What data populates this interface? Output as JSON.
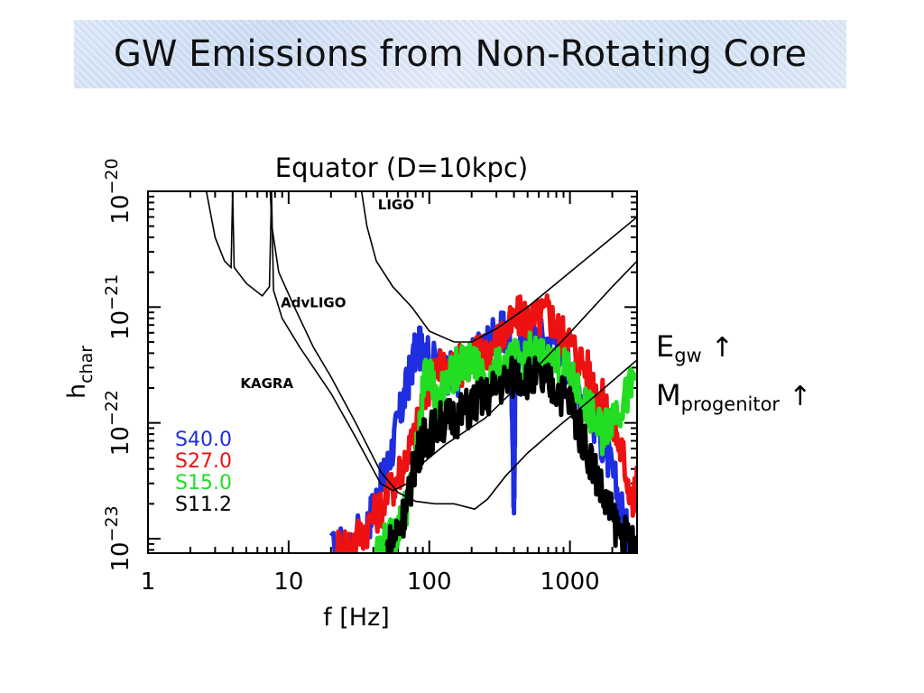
{
  "slide": {
    "title": "GW Emissions from Non-Rotating Core"
  },
  "notes": [
    {
      "main": "E",
      "sub": "gw",
      "arrow": "↑"
    },
    {
      "main": "M",
      "sub": "progenitor",
      "arrow": "↑"
    }
  ],
  "chart_data": {
    "type": "line",
    "title": "Equator (D=10kpc)",
    "xlabel": "f [Hz]",
    "ylabel_main": "h",
    "ylabel_sub": "char",
    "xscale": "log",
    "yscale": "log",
    "xlim": [
      1,
      3000
    ],
    "ylim": [
      7.5e-24,
      1e-20
    ],
    "xticks": [
      {
        "v": 1,
        "label": "1"
      },
      {
        "v": 10,
        "label": "10"
      },
      {
        "v": 100,
        "label": "100"
      },
      {
        "v": 1000,
        "label": "1000"
      }
    ],
    "yticks": [
      {
        "v": 1e-20,
        "base": "10",
        "exp": "−20"
      },
      {
        "v": 1e-21,
        "base": "10",
        "exp": "−21"
      },
      {
        "v": 1e-22,
        "base": "10",
        "exp": "−22"
      },
      {
        "v": 1e-23,
        "base": "10",
        "exp": "−23"
      }
    ],
    "detectors": [
      {
        "label": "LIGO",
        "label_at": [
          58,
          7e-21
        ],
        "points": [
          [
            33,
            1e-20
          ],
          [
            36,
            5e-21
          ],
          [
            42,
            2.5e-21
          ],
          [
            55,
            1.5e-21
          ],
          [
            75,
            1e-21
          ],
          [
            100,
            6.2e-22
          ],
          [
            150,
            5e-22
          ],
          [
            200,
            5e-22
          ],
          [
            300,
            6.5e-22
          ],
          [
            500,
            1e-21
          ],
          [
            800,
            1.6e-21
          ],
          [
            1500,
            3e-21
          ],
          [
            3000,
            6e-21
          ]
        ]
      },
      {
        "label": "AdvLIGO",
        "label_at": [
          15,
          1e-21
        ],
        "points": [
          [
            7.4,
            1e-20
          ],
          [
            7.6,
            5e-21
          ],
          [
            8.5,
            2e-21
          ],
          [
            11,
            1e-21
          ],
          [
            15,
            4.5e-22
          ],
          [
            20,
            2.5e-22
          ],
          [
            30,
            1e-22
          ],
          [
            45,
            3.8e-23
          ],
          [
            60,
            2.5e-23
          ],
          [
            80,
            2.1e-23
          ],
          [
            110,
            2e-23
          ],
          [
            150,
            2e-23
          ],
          [
            210,
            1.8e-23
          ],
          [
            260,
            2.2e-23
          ],
          [
            350,
            3.5e-23
          ],
          [
            500,
            5.5e-23
          ],
          [
            800,
            9e-23
          ],
          [
            1500,
            1.7e-22
          ],
          [
            3000,
            3.5e-22
          ]
        ]
      },
      {
        "label": "KAGRA",
        "label_at": [
          7,
          2e-22
        ],
        "points": [
          [
            2.6,
            1e-20
          ],
          [
            3,
            4e-21
          ],
          [
            3.5,
            2.5e-21
          ],
          [
            3.9,
            2.2e-21
          ],
          [
            4,
            1e-20
          ],
          [
            4.1,
            2.2e-21
          ],
          [
            5,
            1.6e-21
          ],
          [
            6.5,
            1.25e-21
          ],
          [
            7.3,
            1.5e-21
          ],
          [
            7.55,
            1e-20
          ],
          [
            7.8,
            1.4e-21
          ],
          [
            9,
            8e-22
          ],
          [
            12,
            4.5e-22
          ],
          [
            20,
            1.8e-22
          ],
          [
            30,
            7.5e-23
          ],
          [
            45,
            3e-23
          ],
          [
            55,
            2.6e-23
          ],
          [
            70,
            3e-23
          ],
          [
            90,
            4.5e-23
          ],
          [
            130,
            6.5e-23
          ],
          [
            250,
            1.1e-22
          ],
          [
            500,
            2.5e-22
          ],
          [
            1000,
            6e-22
          ],
          [
            2000,
            1.5e-21
          ],
          [
            3000,
            2.5e-21
          ]
        ]
      }
    ],
    "series": [
      {
        "name": "S40.0",
        "color": "#1f2ee0",
        "points": [
          [
            20,
            7.5e-24
          ],
          [
            35,
            1.2e-23
          ],
          [
            42,
            2.2e-23
          ],
          [
            50,
            4e-23
          ],
          [
            60,
            1e-22
          ],
          [
            70,
            2.2e-22
          ],
          [
            80,
            4.2e-22
          ],
          [
            90,
            4.5e-22
          ],
          [
            100,
            3.5e-22
          ],
          [
            130,
            2.8e-22
          ],
          [
            160,
            2.5e-22
          ],
          [
            200,
            3.5e-22
          ],
          [
            260,
            5e-22
          ],
          [
            330,
            6e-22
          ],
          [
            380,
            5e-22
          ],
          [
            400,
            1.8e-23
          ],
          [
            410,
            3e-22
          ],
          [
            480,
            5e-22
          ],
          [
            600,
            5.5e-22
          ],
          [
            800,
            5e-22
          ],
          [
            1000,
            3e-22
          ],
          [
            1300,
            1.5e-22
          ],
          [
            1700,
            7e-23
          ],
          [
            2100,
            3e-23
          ],
          [
            2600,
            1e-23
          ],
          [
            3000,
            7.5e-24
          ]
        ]
      },
      {
        "name": "S27.0",
        "color": "#ee1111",
        "points": [
          [
            22,
            8.5e-24
          ],
          [
            30,
            1e-23
          ],
          [
            40,
            1.5e-23
          ],
          [
            55,
            2.8e-23
          ],
          [
            65,
            4.5e-23
          ],
          [
            80,
            8e-23
          ],
          [
            95,
            2e-22
          ],
          [
            110,
            2.8e-22
          ],
          [
            140,
            3e-22
          ],
          [
            180,
            3.3e-22
          ],
          [
            220,
            4e-22
          ],
          [
            280,
            4.5e-22
          ],
          [
            350,
            6e-22
          ],
          [
            450,
            8.5e-22
          ],
          [
            550,
            7.5e-22
          ],
          [
            700,
            9e-22
          ],
          [
            850,
            6e-22
          ],
          [
            1000,
            5e-22
          ],
          [
            1300,
            3e-22
          ],
          [
            1600,
            1.8e-22
          ],
          [
            2000,
            1e-22
          ],
          [
            2400,
            5e-23
          ],
          [
            2800,
            2e-23
          ],
          [
            3000,
            3e-23
          ]
        ]
      },
      {
        "name": "S15.0",
        "color": "#22dd22",
        "points": [
          [
            42,
            8e-24
          ],
          [
            55,
            1e-23
          ],
          [
            65,
            1.5e-23
          ],
          [
            75,
            3e-23
          ],
          [
            85,
            8e-23
          ],
          [
            92,
            2.5e-22
          ],
          [
            100,
            3.2e-22
          ],
          [
            115,
            1.2e-22
          ],
          [
            130,
            2.5e-22
          ],
          [
            160,
            3e-22
          ],
          [
            200,
            3.2e-22
          ],
          [
            260,
            2.5e-22
          ],
          [
            330,
            3e-22
          ],
          [
            420,
            3.5e-22
          ],
          [
            550,
            4e-22
          ],
          [
            700,
            3.3e-22
          ],
          [
            900,
            3e-22
          ],
          [
            1100,
            2e-22
          ],
          [
            1400,
            1.2e-22
          ],
          [
            1700,
            8e-23
          ],
          [
            2000,
            1.2e-22
          ],
          [
            2400,
            1.5e-22
          ],
          [
            3000,
            2.5e-22
          ]
        ]
      },
      {
        "name": "S11.2",
        "color": "#000000",
        "points": [
          [
            50,
            8e-24
          ],
          [
            60,
            1.2e-23
          ],
          [
            70,
            2e-23
          ],
          [
            80,
            5e-23
          ],
          [
            90,
            7e-23
          ],
          [
            100,
            8e-23
          ],
          [
            120,
            1e-22
          ],
          [
            140,
            1.1e-22
          ],
          [
            170,
            1.2e-22
          ],
          [
            210,
            1.5e-22
          ],
          [
            260,
            1.7e-22
          ],
          [
            330,
            2.2e-22
          ],
          [
            420,
            2.6e-22
          ],
          [
            520,
            2.5e-22
          ],
          [
            650,
            2.2e-22
          ],
          [
            800,
            2e-22
          ],
          [
            1000,
            1.5e-22
          ],
          [
            1200,
            8e-23
          ],
          [
            1500,
            4e-23
          ],
          [
            1800,
            2e-23
          ],
          [
            2200,
            1.2e-23
          ],
          [
            2700,
            9e-24
          ],
          [
            3000,
            8e-24
          ]
        ]
      }
    ]
  }
}
